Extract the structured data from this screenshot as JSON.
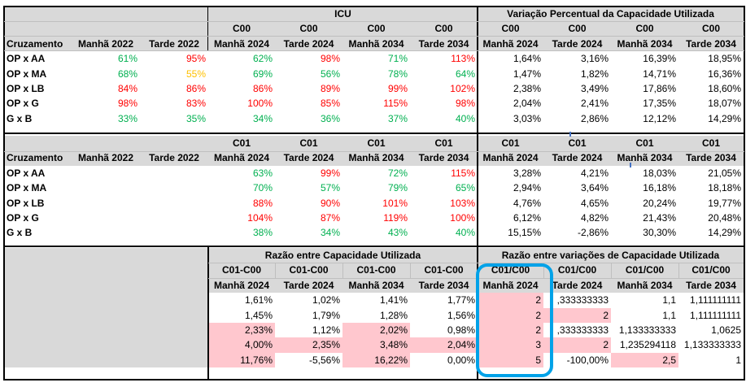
{
  "section1": {
    "title_icu": "ICU",
    "title_var": "Variação Percentual da Capacidade Utilizada",
    "code_header": "C00",
    "headers_icu": [
      "Cruzamento",
      "Manhã 2022",
      "Tarde 2022",
      "Manhã 2024",
      "Tarde 2024",
      "Manhã 2034",
      "Tarde 2034"
    ],
    "headers_var": [
      "Manhã 2024",
      "Tarde 2024",
      "Manhã 2034",
      "Tarde 2034"
    ],
    "rows": [
      {
        "label": "OP x AA",
        "icu": [
          "61%",
          "95%",
          "62%",
          "98%",
          "71%",
          "113%"
        ],
        "icu_colors": [
          "g",
          "r",
          "g",
          "r",
          "g",
          "r"
        ],
        "var": [
          "1,64%",
          "3,16%",
          "16,39%",
          "18,95%"
        ]
      },
      {
        "label": "OP x MA",
        "icu": [
          "68%",
          "55%",
          "69%",
          "56%",
          "78%",
          "64%"
        ],
        "icu_colors": [
          "g",
          "o",
          "g",
          "g",
          "g",
          "g"
        ],
        "var": [
          "1,47%",
          "1,82%",
          "14,71%",
          "16,36%"
        ]
      },
      {
        "label": "OP x LB",
        "icu": [
          "84%",
          "86%",
          "86%",
          "89%",
          "99%",
          "102%"
        ],
        "icu_colors": [
          "r",
          "r",
          "r",
          "r",
          "r",
          "r"
        ],
        "var": [
          "2,38%",
          "3,49%",
          "17,86%",
          "18,60%"
        ]
      },
      {
        "label": "OP x G",
        "icu": [
          "98%",
          "83%",
          "100%",
          "85%",
          "115%",
          "98%"
        ],
        "icu_colors": [
          "r",
          "r",
          "r",
          "r",
          "r",
          "r"
        ],
        "var": [
          "2,04%",
          "2,41%",
          "17,35%",
          "18,07%"
        ]
      },
      {
        "label": "G x B",
        "icu": [
          "33%",
          "35%",
          "34%",
          "36%",
          "37%",
          "40%"
        ],
        "icu_colors": [
          "g",
          "g",
          "g",
          "g",
          "g",
          "g"
        ],
        "var": [
          "3,03%",
          "2,86%",
          "12,12%",
          "14,29%"
        ]
      }
    ]
  },
  "section2": {
    "code_header": "C01",
    "headers": [
      "Cruzamento",
      "Manhã 2022",
      "Tarde 2022",
      "Manhã 2024",
      "Tarde 2024",
      "Manhã 2034",
      "Tarde 2034"
    ],
    "headers_var": [
      "Manhã 2024",
      "Tarde 2024",
      "Manhã 2034",
      "Tarde 2034"
    ],
    "rows": [
      {
        "label": "OP x AA",
        "icu": [
          "63%",
          "99%",
          "72%",
          "115%"
        ],
        "icu_colors": [
          "g",
          "r",
          "g",
          "r"
        ],
        "var": [
          "3,28%",
          "4,21%",
          "18,03%",
          "21,05%"
        ]
      },
      {
        "label": "OP x MA",
        "icu": [
          "70%",
          "57%",
          "79%",
          "65%"
        ],
        "icu_colors": [
          "g",
          "g",
          "g",
          "g"
        ],
        "var": [
          "2,94%",
          "3,64%",
          "16,18%",
          "18,18%"
        ]
      },
      {
        "label": "OP x LB",
        "icu": [
          "88%",
          "90%",
          "101%",
          "103%"
        ],
        "icu_colors": [
          "r",
          "r",
          "r",
          "r"
        ],
        "var": [
          "4,76%",
          "4,65%",
          "20,24%",
          "19,77%"
        ]
      },
      {
        "label": "OP x G",
        "icu": [
          "104%",
          "87%",
          "119%",
          "100%"
        ],
        "icu_colors": [
          "r",
          "r",
          "r",
          "r"
        ],
        "var": [
          "6,12%",
          "4,82%",
          "21,43%",
          "20,48%"
        ]
      },
      {
        "label": "G x B",
        "icu": [
          "38%",
          "34%",
          "43%",
          "40%"
        ],
        "icu_colors": [
          "g",
          "g",
          "g",
          "g"
        ],
        "var": [
          "15,15%",
          "-2,86%",
          "30,30%",
          "14,29%"
        ]
      }
    ]
  },
  "section3": {
    "title_ratio": "Razão entre Capacidade Utilizada",
    "title_var_ratio": "Razão entre variações de Capacidade Utilizada",
    "code_ratio": "C01-C00",
    "code_var_ratio": "C01/C00",
    "headers": [
      "Manhã 2024",
      "Tarde 2024",
      "Manhã 2034",
      "Tarde 2034"
    ],
    "rows": [
      {
        "ratio": [
          "1,61%",
          "1,02%",
          "1,41%",
          "1,77%"
        ],
        "ratio_pink": [
          false,
          false,
          false,
          false
        ],
        "var": [
          "2",
          ",333333333",
          "1,1",
          "1,111111111"
        ],
        "var_pink": [
          true,
          false,
          false,
          false
        ]
      },
      {
        "ratio": [
          "1,45%",
          "1,79%",
          "1,28%",
          "1,56%"
        ],
        "ratio_pink": [
          false,
          false,
          false,
          false
        ],
        "var": [
          "2",
          "2",
          "1,1",
          "1,111111111"
        ],
        "var_pink": [
          true,
          true,
          false,
          false
        ]
      },
      {
        "ratio": [
          "2,33%",
          "1,12%",
          "2,02%",
          "0,98%"
        ],
        "ratio_pink": [
          true,
          false,
          true,
          false
        ],
        "var": [
          "2",
          ",333333333",
          "1,133333333",
          "1,0625"
        ],
        "var_pink": [
          true,
          false,
          false,
          false
        ]
      },
      {
        "ratio": [
          "4,00%",
          "2,35%",
          "3,48%",
          "2,04%"
        ],
        "ratio_pink": [
          true,
          true,
          true,
          true
        ],
        "var": [
          "3",
          "2",
          "1,235294118",
          "1,133333333"
        ],
        "var_pink": [
          true,
          true,
          false,
          false
        ]
      },
      {
        "ratio": [
          "11,76%",
          "-5,56%",
          "16,22%",
          "0,00%"
        ],
        "ratio_pink": [
          true,
          false,
          true,
          false
        ],
        "var": [
          "5",
          "-100,00%",
          "2,5",
          "1"
        ],
        "var_pink": [
          true,
          false,
          true,
          false
        ]
      }
    ]
  },
  "highlight_color": "#00a2e8"
}
